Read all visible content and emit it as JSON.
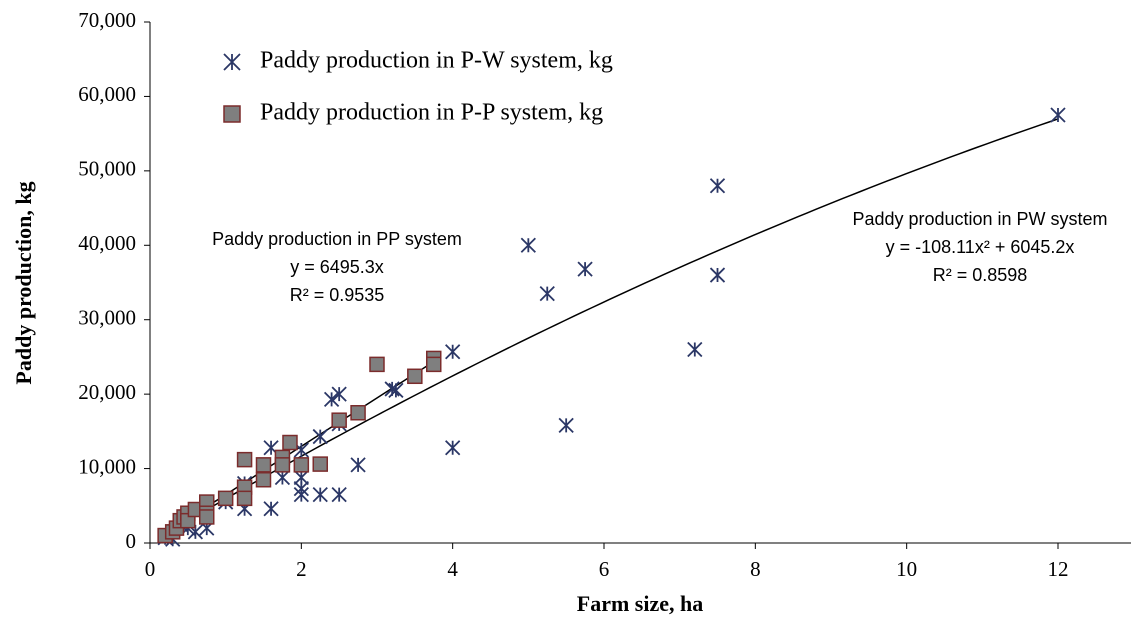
{
  "chart_data": {
    "type": "scatter",
    "x_label": "Farm size, ha",
    "y_label": "Paddy production, kg",
    "xlim": [
      0,
      13
    ],
    "xticks": [
      0,
      2,
      4,
      6,
      8,
      10,
      12
    ],
    "ylim": [
      0,
      70000
    ],
    "yticks": [
      0,
      {
        "value": 10000,
        "label": "10,000"
      },
      {
        "value": 20000,
        "label": "20,000"
      },
      {
        "value": 30000,
        "label": "30,000"
      },
      {
        "value": 40000,
        "label": "40,000"
      },
      {
        "value": 50000,
        "label": "50,000"
      },
      {
        "value": 60000,
        "label": "60,000"
      },
      {
        "value": 70000,
        "label": "70,000"
      }
    ],
    "series": [
      {
        "name": "Paddy production in P-W system, kg",
        "marker": "x",
        "color": "#2b3766",
        "x": [
          12,
          7.5,
          7.5,
          7.2,
          5.75,
          5.25,
          5,
          5.5,
          4,
          4,
          3.2,
          3.25,
          2.5,
          2.4,
          2.5,
          2.25,
          2.75,
          2.5,
          2.25,
          2,
          2,
          2,
          2,
          1.75,
          1.6,
          1.6,
          1.25,
          1.25,
          1,
          0.75,
          0.6,
          0.5,
          0.3,
          0.2,
          0.4
        ],
        "values": [
          57500,
          48000,
          36000,
          26000,
          36800,
          33500,
          40000,
          15800,
          25700,
          12800,
          20700,
          20500,
          20000,
          19300,
          16000,
          14300,
          10500,
          6500,
          6500,
          6500,
          7300,
          8800,
          12500,
          8800,
          12800,
          4600,
          4600,
          8000,
          5500,
          2000,
          1500,
          2000,
          500,
          700,
          2500
        ]
      },
      {
        "name": "Paddy production in P-P system, kg",
        "marker": "square",
        "color": "#7f7f7f",
        "edge_color": "#7b2c2c",
        "x": [
          0.2,
          0.3,
          0.35,
          0.4,
          0.45,
          0.5,
          0.5,
          0.6,
          0.75,
          0.75,
          0.75,
          1,
          1.25,
          1.25,
          1.25,
          1.5,
          1.5,
          1.75,
          1.75,
          1.85,
          2,
          2.25,
          2.5,
          2.75,
          3,
          3.5,
          3.75,
          3.75
        ],
        "values": [
          1000,
          1500,
          2000,
          3000,
          3500,
          4000,
          3000,
          4500,
          5500,
          4000,
          3500,
          6000,
          11200,
          7500,
          6000,
          10500,
          8500,
          11500,
          10500,
          13500,
          10500,
          10600,
          16500,
          17500,
          24000,
          22400,
          24800,
          24000
        ]
      }
    ],
    "trendlines": [
      {
        "label": "Paddy production in PP system",
        "equation": "y = 6495.3x",
        "r2": "R² = 0.9535",
        "coefficients": [
          0,
          6495.3
        ],
        "xrange": [
          0.15,
          3.75
        ]
      },
      {
        "label": "Paddy production in PW system",
        "equation": "y = -108.11x² + 6045.2x",
        "r2": "R² = 0.8598",
        "coefficients": [
          -108.11,
          6045.2
        ],
        "xrange": [
          0.15,
          12
        ]
      }
    ],
    "legend": "upper-left"
  }
}
